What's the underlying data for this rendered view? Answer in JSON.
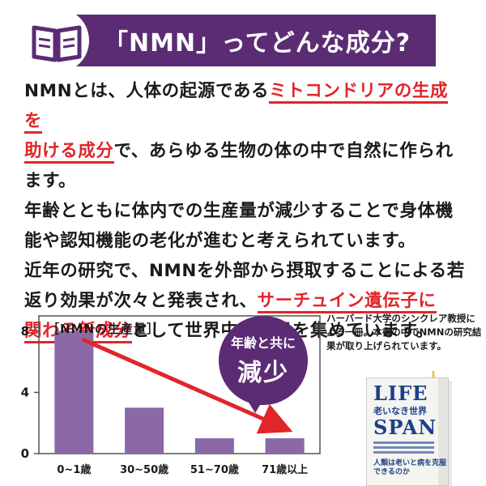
{
  "header": {
    "title": "「NMN」ってどんな成分?",
    "icon": "open-book-icon",
    "banner_color": "#5b2c74"
  },
  "body": {
    "p1": {
      "a": "NMNとは、人体の起源である",
      "b": "ミトコンドリアの生成を",
      "c": "助ける成分",
      "d": "で、あらゆる生物の体の中で自然に作られます。"
    },
    "p2": "年齢とともに体内での生産量が減少することで身体機能や認知機能の老化が進むと考えられています。",
    "p3": {
      "a": "近年の研究で、NMNを外部から摂取することによる若返り効果が次々と発表され、",
      "b": "サーチュイン遺伝子に",
      "c": "関わる新成分",
      "d": "として世界中で注目を集めています。"
    },
    "highlight_color": "#e0262b"
  },
  "chart_data": {
    "type": "bar",
    "title": "［NMNの生産量］",
    "categories": [
      "0~1歳",
      "30~50歳",
      "51~70歳",
      "71歳以上"
    ],
    "values": [
      8,
      3,
      1,
      1
    ],
    "yticks": [
      0,
      4,
      8
    ],
    "ylim": [
      0,
      9
    ],
    "bar_color": "#8b68a8",
    "arrow_color": "#e0262b",
    "annotation": {
      "line1": "年齢と共に",
      "line2": "減少"
    }
  },
  "side_note": {
    "text": "ハーバード大学のシンクレア教授による一冊。本書の中でNMNの研究結果が取り上げられています。",
    "book": {
      "title_top": "LIFE",
      "subtitle": "老いなき世界",
      "title_bottom": "SPAN",
      "bottom_text": "人類は老いと病を克服できるのか"
    }
  }
}
